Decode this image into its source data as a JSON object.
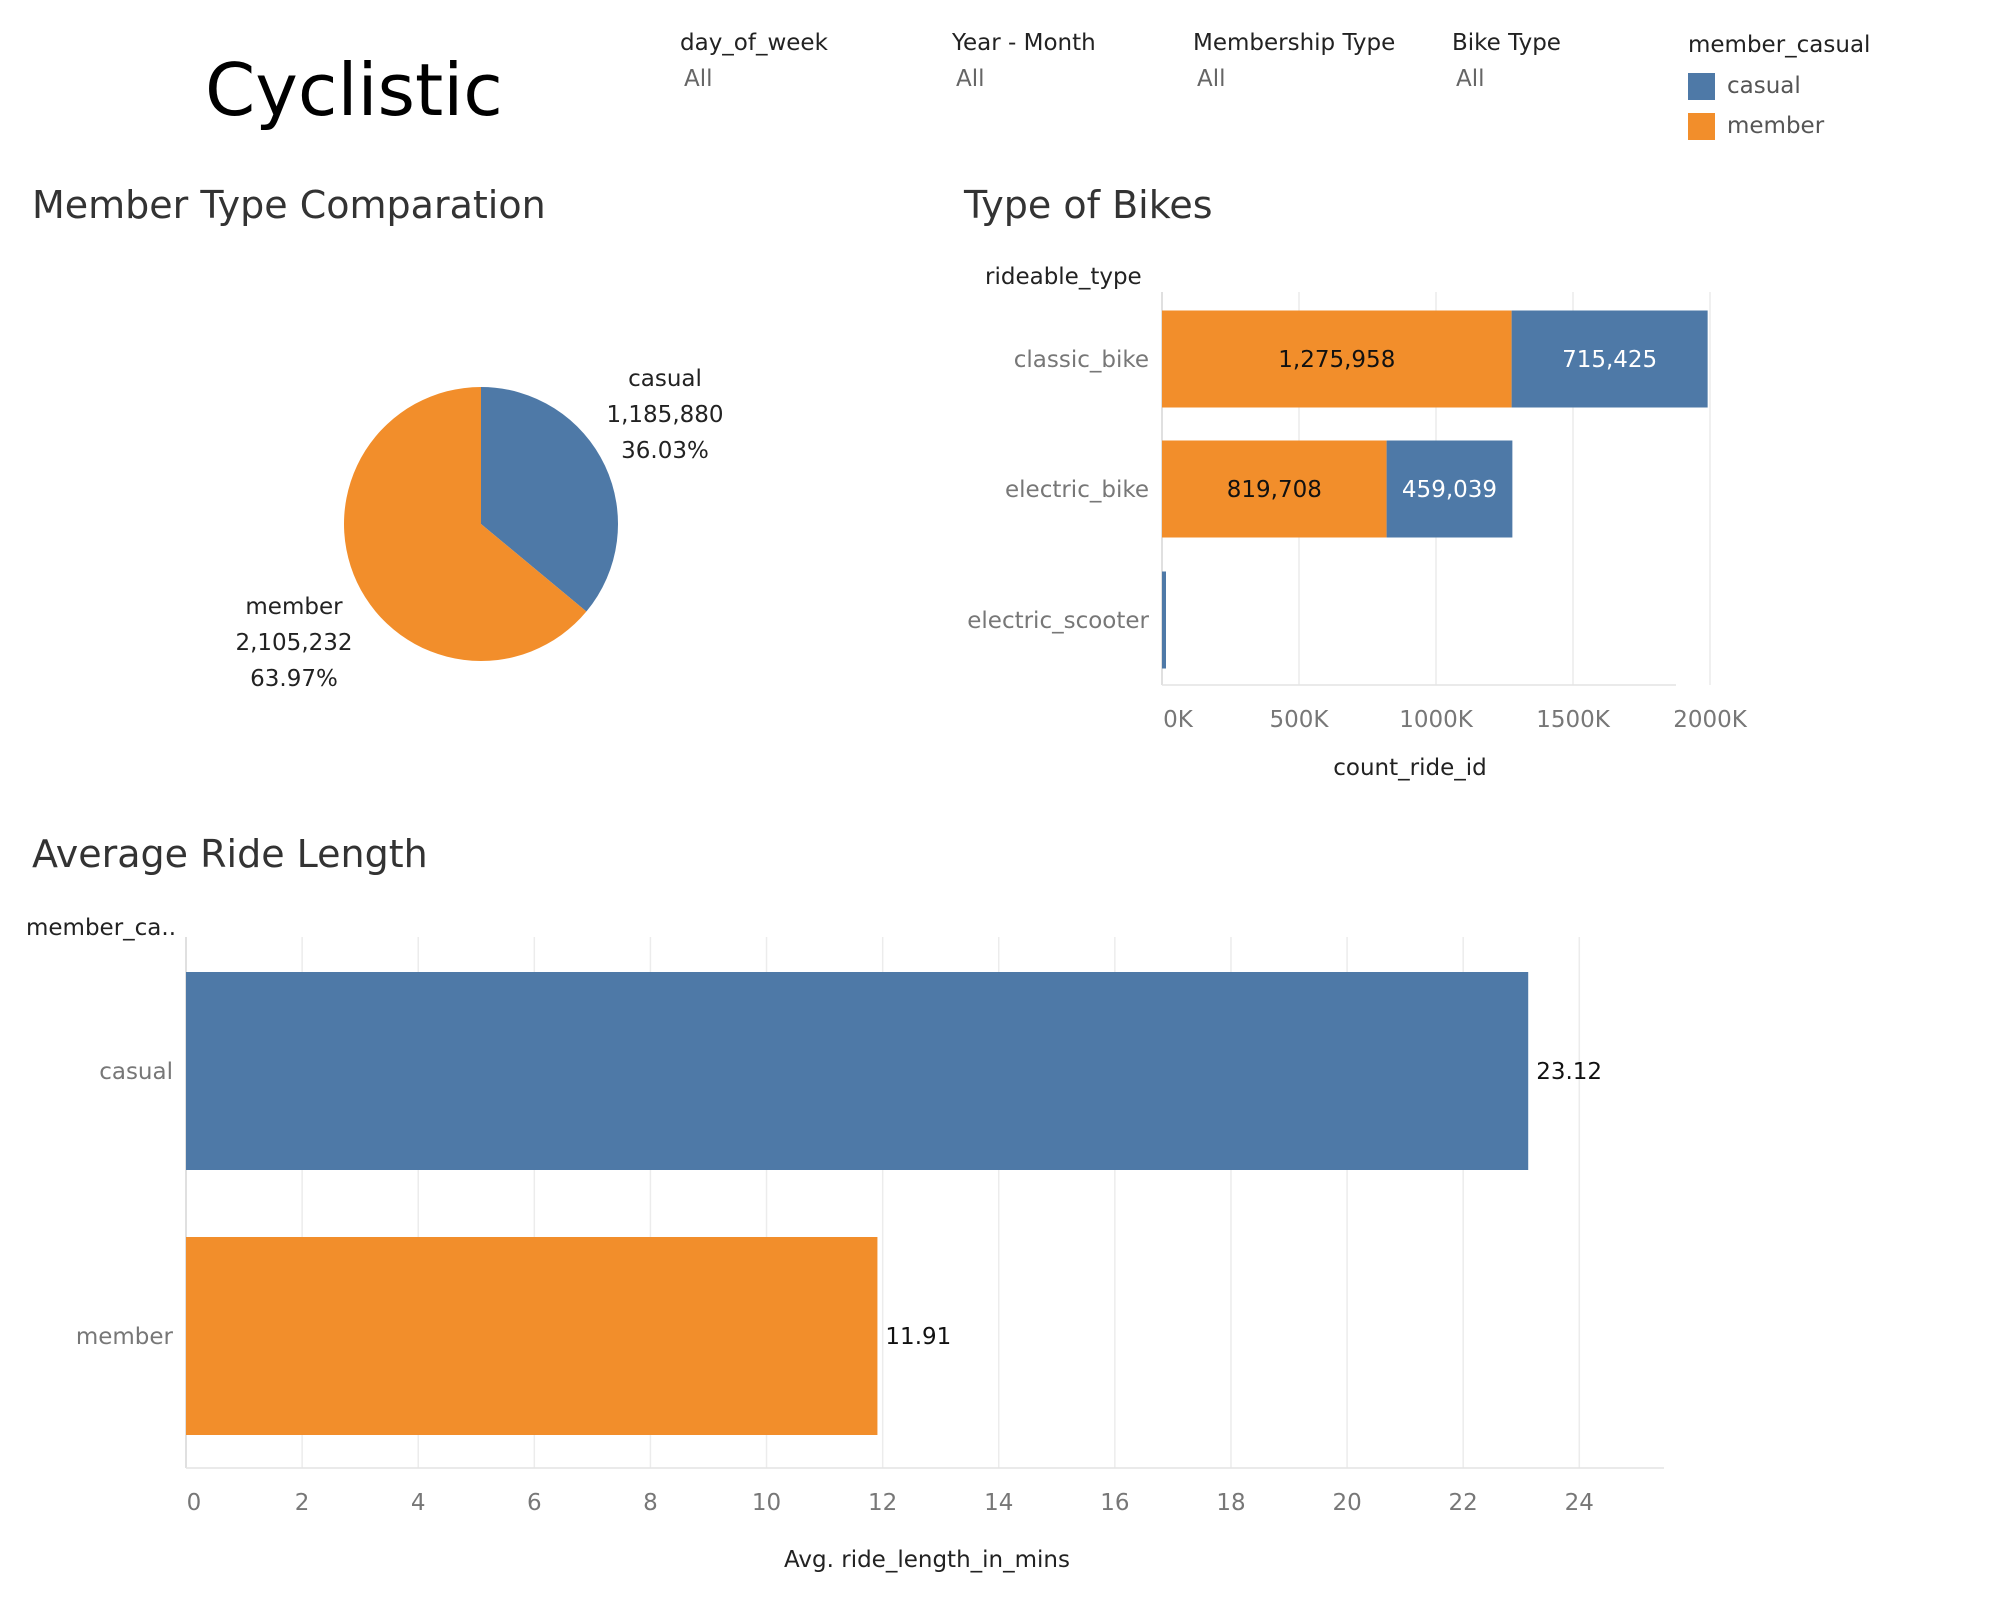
{
  "app_title": "Cyclistic",
  "filters": [
    {
      "label": "day_of_week",
      "value": "All"
    },
    {
      "label": "Year - Month",
      "value": "All"
    },
    {
      "label": "Membership Type",
      "value": "All"
    },
    {
      "label": "Bike Type",
      "value": "All"
    }
  ],
  "legend": {
    "title": "member_casual",
    "items": [
      {
        "label": "casual",
        "color": "#4e79a7"
      },
      {
        "label": "member",
        "color": "#f28e2b"
      }
    ]
  },
  "chart_data": [
    {
      "type": "pie",
      "title": "Member Type Comparation",
      "slices": [
        {
          "label": "casual",
          "value": 1185880,
          "value_label": "1,185,880",
          "percent_label": "36.03%",
          "color": "#4e79a7"
        },
        {
          "label": "member",
          "value": 2105232,
          "value_label": "2,105,232",
          "percent_label": "63.97%",
          "color": "#f28e2b"
        }
      ]
    },
    {
      "type": "bar",
      "orientation": "horizontal",
      "stacked": true,
      "title": "Type of Bikes",
      "ylabel": "rideable_type",
      "xlabel": "count_ride_id",
      "categories": [
        "classic_bike",
        "electric_bike",
        "electric_scooter"
      ],
      "series": [
        {
          "name": "member",
          "color": "#f28e2b",
          "values": [
            1275958,
            819708,
            0
          ],
          "labels": [
            "1,275,958",
            "819,708",
            ""
          ]
        },
        {
          "name": "casual",
          "color": "#4e79a7",
          "values": [
            715425,
            459039,
            10000
          ],
          "labels": [
            "715,425",
            "459,039",
            ""
          ]
        }
      ],
      "xlim": [
        0,
        2100000
      ],
      "xticks": [
        0,
        500000,
        1000000,
        1500000,
        2000000
      ],
      "xtick_labels": [
        "0K",
        "500K",
        "1000K",
        "1500K",
        "2000K"
      ],
      "grid": true
    },
    {
      "type": "bar",
      "orientation": "horizontal",
      "title": "Average Ride Length",
      "ylabel": "member_ca..",
      "xlabel": "Avg. ride_length_in_mins",
      "categories": [
        "casual",
        "member"
      ],
      "values": [
        23.12,
        11.91
      ],
      "value_labels": [
        "23.12",
        "11.91"
      ],
      "colors": [
        "#4e79a7",
        "#f28e2b"
      ],
      "xlim": [
        0,
        25.7
      ],
      "xticks": [
        0,
        2,
        4,
        6,
        8,
        10,
        12,
        14,
        16,
        18,
        20,
        22,
        24
      ],
      "xtick_labels": [
        "0",
        "2",
        "4",
        "6",
        "8",
        "10",
        "12",
        "14",
        "16",
        "18",
        "20",
        "22",
        "24"
      ],
      "grid": true
    }
  ]
}
